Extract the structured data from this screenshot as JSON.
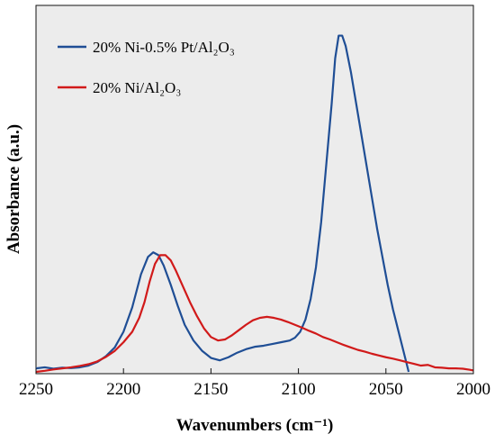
{
  "chart_data": {
    "type": "line",
    "title": "",
    "xlabel": "Wavenumbers (cm⁻¹)",
    "ylabel": "Absorbance (a.u.)",
    "xlim": [
      2250,
      2000
    ],
    "x_reversed": true,
    "ylim": [
      0,
      1
    ],
    "grid": false,
    "legend_position": "top-left",
    "x_ticks": [
      2250,
      2200,
      2150,
      2100,
      2050,
      2000
    ],
    "background": "#ececec",
    "series": [
      {
        "name": "20% Ni-0.5% Pt/Al₂O₃",
        "color": "#1f4e95",
        "points": [
          [
            2250,
            0.01
          ],
          [
            2245,
            0.013
          ],
          [
            2240,
            0.009
          ],
          [
            2235,
            0.012
          ],
          [
            2230,
            0.011
          ],
          [
            2225,
            0.013
          ],
          [
            2220,
            0.018
          ],
          [
            2215,
            0.028
          ],
          [
            2210,
            0.045
          ],
          [
            2205,
            0.07
          ],
          [
            2200,
            0.115
          ],
          [
            2195,
            0.185
          ],
          [
            2190,
            0.28
          ],
          [
            2186,
            0.33
          ],
          [
            2183,
            0.343
          ],
          [
            2180,
            0.335
          ],
          [
            2177,
            0.305
          ],
          [
            2173,
            0.25
          ],
          [
            2169,
            0.19
          ],
          [
            2165,
            0.135
          ],
          [
            2160,
            0.09
          ],
          [
            2155,
            0.06
          ],
          [
            2150,
            0.04
          ],
          [
            2145,
            0.033
          ],
          [
            2140,
            0.042
          ],
          [
            2135,
            0.055
          ],
          [
            2130,
            0.065
          ],
          [
            2125,
            0.072
          ],
          [
            2120,
            0.075
          ],
          [
            2115,
            0.08
          ],
          [
            2110,
            0.085
          ],
          [
            2105,
            0.09
          ],
          [
            2102,
            0.098
          ],
          [
            2099,
            0.115
          ],
          [
            2096,
            0.15
          ],
          [
            2093,
            0.21
          ],
          [
            2090,
            0.3
          ],
          [
            2087,
            0.43
          ],
          [
            2084,
            0.6
          ],
          [
            2081,
            0.77
          ],
          [
            2079,
            0.9
          ],
          [
            2077,
            0.965
          ],
          [
            2075,
            0.965
          ],
          [
            2073,
            0.935
          ],
          [
            2070,
            0.86
          ],
          [
            2067,
            0.77
          ],
          [
            2064,
            0.68
          ],
          [
            2061,
            0.59
          ],
          [
            2058,
            0.5
          ],
          [
            2055,
            0.41
          ],
          [
            2052,
            0.33
          ],
          [
            2049,
            0.25
          ],
          [
            2046,
            0.18
          ],
          [
            2043,
            0.12
          ],
          [
            2040,
            0.06
          ],
          [
            2037,
            0.0
          ]
        ]
      },
      {
        "name": "20% Ni/Al₂O₃",
        "color": "#d11a1a",
        "points": [
          [
            2250,
            0.0
          ],
          [
            2245,
            0.003
          ],
          [
            2240,
            0.007
          ],
          [
            2235,
            0.01
          ],
          [
            2230,
            0.013
          ],
          [
            2225,
            0.017
          ],
          [
            2220,
            0.022
          ],
          [
            2215,
            0.03
          ],
          [
            2210,
            0.043
          ],
          [
            2205,
            0.06
          ],
          [
            2200,
            0.085
          ],
          [
            2195,
            0.115
          ],
          [
            2191,
            0.155
          ],
          [
            2188,
            0.2
          ],
          [
            2185,
            0.26
          ],
          [
            2182,
            0.31
          ],
          [
            2179,
            0.335
          ],
          [
            2176,
            0.335
          ],
          [
            2173,
            0.32
          ],
          [
            2170,
            0.29
          ],
          [
            2166,
            0.245
          ],
          [
            2162,
            0.2
          ],
          [
            2158,
            0.16
          ],
          [
            2154,
            0.125
          ],
          [
            2150,
            0.1
          ],
          [
            2146,
            0.09
          ],
          [
            2142,
            0.093
          ],
          [
            2138,
            0.105
          ],
          [
            2134,
            0.12
          ],
          [
            2130,
            0.135
          ],
          [
            2126,
            0.148
          ],
          [
            2122,
            0.155
          ],
          [
            2118,
            0.158
          ],
          [
            2114,
            0.155
          ],
          [
            2110,
            0.15
          ],
          [
            2106,
            0.143
          ],
          [
            2102,
            0.135
          ],
          [
            2098,
            0.127
          ],
          [
            2094,
            0.118
          ],
          [
            2090,
            0.11
          ],
          [
            2086,
            0.1
          ],
          [
            2082,
            0.093
          ],
          [
            2078,
            0.085
          ],
          [
            2074,
            0.077
          ],
          [
            2070,
            0.07
          ],
          [
            2066,
            0.063
          ],
          [
            2062,
            0.058
          ],
          [
            2058,
            0.052
          ],
          [
            2054,
            0.047
          ],
          [
            2050,
            0.042
          ],
          [
            2046,
            0.038
          ],
          [
            2042,
            0.033
          ],
          [
            2038,
            0.028
          ],
          [
            2034,
            0.023
          ],
          [
            2030,
            0.018
          ],
          [
            2026,
            0.02
          ],
          [
            2022,
            0.013
          ],
          [
            2018,
            0.012
          ],
          [
            2014,
            0.01
          ],
          [
            2010,
            0.01
          ],
          [
            2006,
            0.009
          ],
          [
            2002,
            0.006
          ],
          [
            2000,
            0.004
          ]
        ]
      }
    ]
  }
}
